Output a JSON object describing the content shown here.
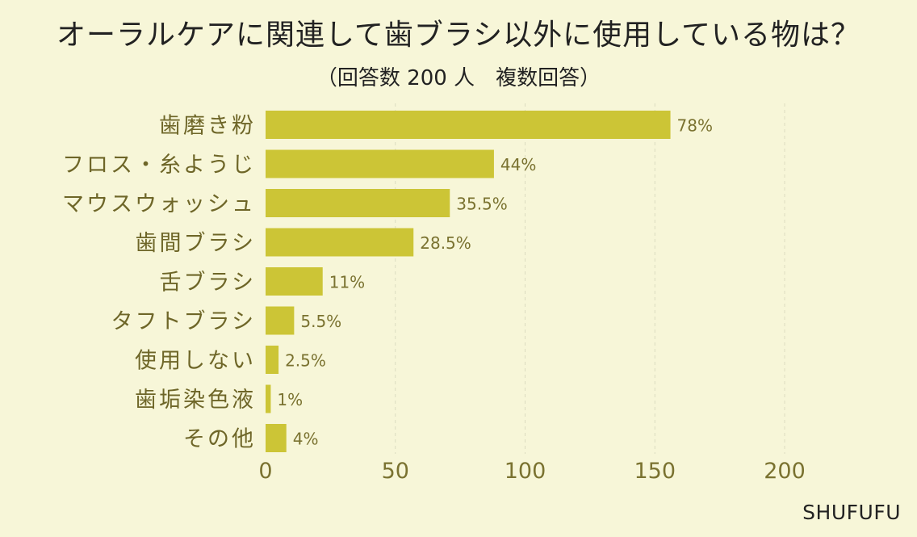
{
  "title": "オーラルケアに関連して歯ブラシ以外に使用している物は？",
  "subtitle": "（回答数 200 人　複数回答）",
  "brand": "SHUFUFU",
  "colors": {
    "bar": "#ccc536",
    "background": "#f7f6d8",
    "label": "#7a7230",
    "grid": "#dcdcc0"
  },
  "chart_data": {
    "type": "bar",
    "orientation": "horizontal",
    "categories": [
      "歯磨き粉",
      "フロス・糸ようじ",
      "マウスウォッシュ",
      "歯間ブラシ",
      "舌ブラシ",
      "タフトブラシ",
      "使用しない",
      "歯垢染色液",
      "その他"
    ],
    "values": [
      156,
      88,
      71,
      57,
      22,
      11,
      5,
      2,
      8
    ],
    "data_labels": [
      "78%",
      "44%",
      "35.5%",
      "28.5%",
      "11%",
      "5.5%",
      "2.5%",
      "1%",
      "4%"
    ],
    "xlim": [
      0,
      250
    ],
    "xticks": [
      0,
      50,
      100,
      150,
      200
    ],
    "grid": "vertical dashed"
  }
}
